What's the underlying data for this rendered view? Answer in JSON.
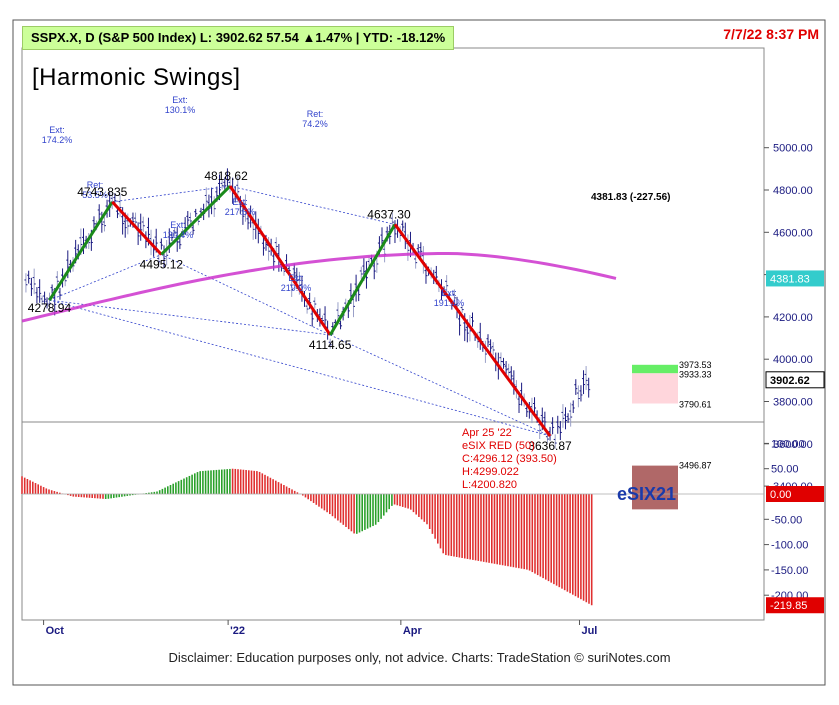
{
  "header": {
    "ticker_line": "SSPX.X, D (S&P 500 Index)  L: 3902.62  57.54 ▲1.47%  |  YTD: -18.12%",
    "timestamp": "7/7/22 8:37 PM",
    "study_title": "[Harmonic Swings]"
  },
  "footer": {
    "disclaimer": "Disclaimer: Education purposes only, not advice.   Charts: TradeStation   © suriNotes.com"
  },
  "colors": {
    "up_swing": "#1a8a1a",
    "down_swing": "#e00000",
    "moving_average": "#cc33cc",
    "price_bars": "#1a1a80",
    "fib_lines": "#3344cc",
    "osc_red": "#e03030",
    "osc_green": "#2aa02a",
    "box_green": "#66ee66",
    "box_pink": "#ffd6dc",
    "box_brown": "#b06868"
  },
  "chart_data": [
    {
      "type": "line",
      "title": "",
      "y_axis": {
        "min": 3200,
        "max": 5100,
        "ticks": [
          3400,
          3600,
          3800,
          4000,
          4200,
          4400,
          4600,
          4800,
          5000
        ],
        "tick_labels": [
          "3400.00",
          "3600.00",
          "3800.00",
          "4000.00",
          "4200.00",
          "4400.00",
          "4600.00",
          "4800.00",
          "5000.00"
        ]
      },
      "x_axis": {
        "labels": [
          "Oct",
          "'22",
          "Apr",
          "Jul"
        ]
      },
      "swings": [
        {
          "date": "2021-10-04",
          "price": 4278.94,
          "label": "4278.94"
        },
        {
          "date": "2021-11-05",
          "price": 4743.835,
          "label": "4743.835"
        },
        {
          "date": "2021-11-30",
          "price": 4495.12,
          "label": "4495.12"
        },
        {
          "date": "2022-01-04",
          "price": 4818.62,
          "label": "4818.62"
        },
        {
          "date": "2022-02-24",
          "price": 4114.65,
          "label": "4114.65"
        },
        {
          "date": "2022-03-29",
          "price": 4637.3,
          "label": "4637.30"
        },
        {
          "date": "2022-06-16",
          "price": 3636.87,
          "label": "3636.87"
        }
      ],
      "fib_annotations": [
        {
          "text": "Ext:\n174.2%"
        },
        {
          "text": "Ext:\n130.1%"
        },
        {
          "text": "Ret:\n53.5%"
        },
        {
          "text": "Ext:\n217.6%"
        },
        {
          "text": "Ext:\n130.4%"
        },
        {
          "text": "Ret:\n74.2%"
        },
        {
          "text": "Ext:\n219.0%"
        },
        {
          "text": "Ext:\n191.4%"
        }
      ],
      "moving_average": {
        "last": 4381.83,
        "label": "4381.83 (-227.56)",
        "axis_tag": "4381.83"
      },
      "last_price": {
        "value": 3902.62,
        "axis_tag": "3902.62"
      },
      "zones": [
        {
          "top": 3973.53,
          "bottom": 3933.33,
          "top_label": "3973.53",
          "bottom_label": "3933.33"
        },
        {
          "top": 3933.33,
          "bottom": 3790.61,
          "bottom_label": "3790.61"
        },
        {
          "top": 3496.87,
          "bottom": 3290.0,
          "top_label": "3496.87"
        }
      ]
    },
    {
      "type": "bar",
      "title": "eSIX21",
      "y_axis": {
        "min": -230,
        "max": 130,
        "ticks": [
          -200,
          -150,
          -100,
          -50,
          0,
          50,
          100
        ],
        "tick_labels": [
          "-200.00",
          "-150.00",
          "-100.00",
          "-50.00",
          "0.00",
          "50.00",
          "100.00"
        ]
      },
      "last": {
        "value": -219.85,
        "axis_tag": "-219.85"
      },
      "zero_tag": "0.00",
      "tooltip": [
        "Apr 25 '22",
        "eSIX RED (50)",
        "C:4296.12 (393.50)",
        "H:4299.022",
        "L:4200.820"
      ]
    }
  ]
}
